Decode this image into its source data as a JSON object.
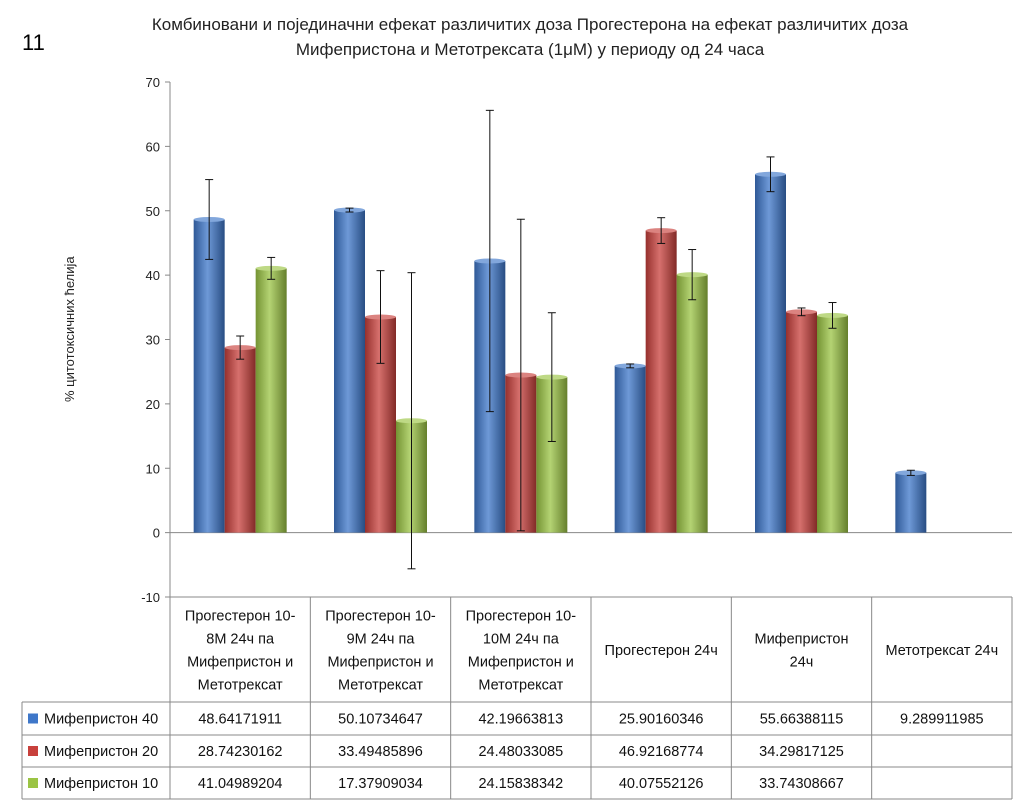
{
  "page_number": "11",
  "chart_data": {
    "type": "bar",
    "title_lines": [
      "Комбиновани и појединачни ефекат различитих доза Прогестерона на ефекат различитих доза",
      "Мифепристона и Метотрексата (1μM) у периоду од 24 часа"
    ],
    "ylabel": "% цитотоксичних ћелија",
    "xlabel": "",
    "ylim": [
      -10,
      70
    ],
    "yticks": [
      -10,
      0,
      10,
      20,
      30,
      40,
      50,
      60,
      70
    ],
    "grid": false,
    "legend": "data-table-left",
    "categories": [
      [
        "Прогестерон 10-",
        "8М 24ч па",
        "Мифепристон и",
        "Метотрексат"
      ],
      [
        "Прогестерон 10-",
        "9М 24ч па",
        "Мифепристон и",
        "Метотрексат"
      ],
      [
        "Прогестерон 10-",
        "10М 24ч па",
        "Мифепристон и",
        "Метотрексат"
      ],
      [
        "Прогестерон 24ч"
      ],
      [
        "Мифепристон",
        "24ч"
      ],
      [
        "Метотрексат 24ч"
      ]
    ],
    "series": [
      {
        "name": "Мифепристон 40",
        "color": "#3e77c9",
        "values": [
          48.64171911,
          50.10734647,
          42.19663813,
          25.90160346,
          55.66388115,
          9.289911985
        ],
        "labels": [
          "48.64171911",
          "50.10734647",
          "42.19663813",
          "25.90160346",
          "55.66388115",
          "9.289911985"
        ],
        "errors": [
          6.2,
          0.3,
          23.4,
          0.3,
          2.7,
          0.4
        ]
      },
      {
        "name": "Мифепристон 20",
        "color": "#c8403c",
        "values": [
          28.74230162,
          33.49485896,
          24.48033085,
          46.92168774,
          34.29817125,
          null
        ],
        "labels": [
          "28.74230162",
          "33.49485896",
          "24.48033085",
          "46.92168774",
          "34.29817125",
          ""
        ],
        "errors": [
          1.8,
          7.2,
          24.2,
          2.0,
          0.6,
          null
        ]
      },
      {
        "name": "Мифепристон 10",
        "color": "#9bc444",
        "values": [
          41.04989204,
          17.37909034,
          24.15838342,
          40.07552126,
          33.74308667,
          null
        ],
        "labels": [
          "41.04989204",
          "17.37909034",
          "24.15838342",
          "40.07552126",
          "33.74308667",
          ""
        ],
        "errors": [
          1.7,
          23.0,
          10.0,
          3.9,
          2.0,
          null
        ]
      }
    ]
  }
}
